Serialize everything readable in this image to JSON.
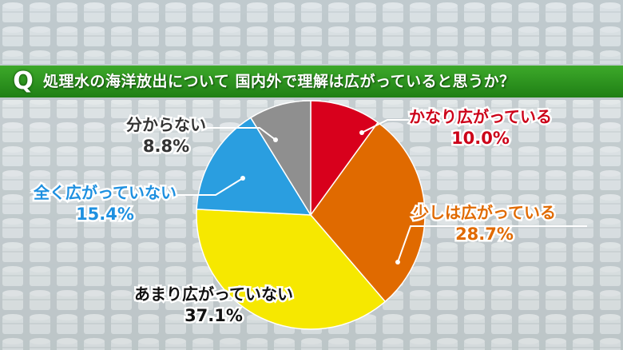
{
  "question": {
    "mark": "Q",
    "text": "処理水の海洋放出について 国内外で理解は広がっていると思うか？"
  },
  "chart_data": {
    "type": "pie",
    "title": "処理水の海洋放出について 国内外で理解は広がっていると思うか？",
    "start": "12 o'clock, clockwise",
    "slices": [
      {
        "label": "かなり広がっている",
        "value": 10.0,
        "display": "10.0%",
        "color": "#d8001c",
        "text_color": "#cc0018"
      },
      {
        "label": "少しは広がっている",
        "value": 28.7,
        "display": "28.7%",
        "color": "#e06a00",
        "text_color": "#e06a00"
      },
      {
        "label": "あまり広がっていない",
        "value": 37.1,
        "display": "37.1%",
        "color": "#f6e800",
        "text_color": "#111111"
      },
      {
        "label": "全く広がっていない",
        "value": 15.4,
        "display": "15.4%",
        "color": "#2a9ee0",
        "text_color": "#1e90e0"
      },
      {
        "label": "分からない",
        "value": 8.8,
        "display": "8.8%",
        "color": "#8f8f8f",
        "text_color": "#333333"
      }
    ]
  }
}
